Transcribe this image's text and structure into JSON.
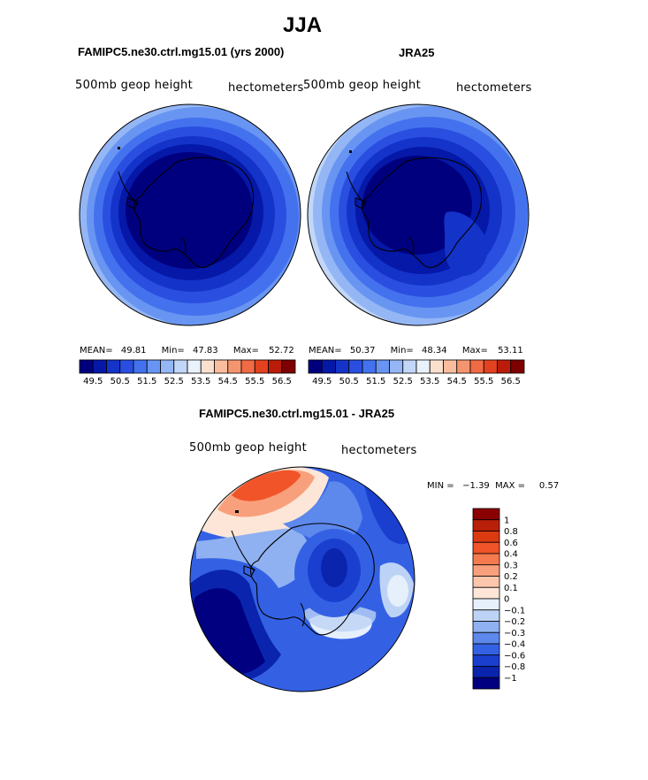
{
  "title": "JJA",
  "panels": [
    {
      "id": "model",
      "subtitle": "FAMIPC5.ne30.ctrl.mg15.01 (yrs 2000)",
      "var_label": "500mb geop height",
      "units_label": "hectometers",
      "mean_label": "MEAN=",
      "mean": "49.81",
      "min_label": "Min=",
      "min": "47.83",
      "max_label": "Max=",
      "max": "52.72"
    },
    {
      "id": "obs",
      "subtitle": "JRA25",
      "var_label": "500mb geop height",
      "units_label": "hectometers",
      "mean_label": "MEAN=",
      "mean": "50.37",
      "min_label": "Min=",
      "min": "48.34",
      "max_label": "Max=",
      "max": "53.11"
    },
    {
      "id": "diff",
      "subtitle": "FAMIPC5.ne30.ctrl.mg15.01 - JRA25",
      "var_label": "500mb geop height",
      "units_label": "hectometers",
      "minmax_text": "MIN =   −1.39  MAX =     0.57"
    }
  ],
  "chart_data": [
    {
      "type": "heatmap",
      "projection": "south polar stereographic",
      "panel": "model",
      "contour_levels": [
        49.5,
        50,
        50.5,
        51,
        51.5,
        52,
        52.5,
        53,
        53.5,
        54,
        54.5,
        55,
        55.5,
        56,
        56.5
      ],
      "colorbar_tick_labels": [
        "49.5",
        "50.5",
        "51.5",
        "52.5",
        "53.5",
        "54.5",
        "55.5",
        "56.5"
      ],
      "colors": [
        "#00007f",
        "#0518a8",
        "#1433c8",
        "#2a4fe0",
        "#4472ee",
        "#6995f2",
        "#94b6f5",
        "#c2d6f7",
        "#e9f1fb",
        "#fbe0cf",
        "#f9bd9d",
        "#f59570",
        "#f06a45",
        "#e34220",
        "#bb1c0a",
        "#7e0000"
      ],
      "mean": 49.81,
      "min": 47.83,
      "max": 52.72
    },
    {
      "type": "heatmap",
      "projection": "south polar stereographic",
      "panel": "obs",
      "contour_levels": [
        49.5,
        50,
        50.5,
        51,
        51.5,
        52,
        52.5,
        53,
        53.5,
        54,
        54.5,
        55,
        55.5,
        56,
        56.5
      ],
      "colorbar_tick_labels": [
        "49.5",
        "50.5",
        "51.5",
        "52.5",
        "53.5",
        "54.5",
        "55.5",
        "56.5"
      ],
      "colors": [
        "#00007f",
        "#0518a8",
        "#1433c8",
        "#2a4fe0",
        "#4472ee",
        "#6995f2",
        "#94b6f5",
        "#c2d6f7",
        "#e9f1fb",
        "#fbe0cf",
        "#f9bd9d",
        "#f59570",
        "#f06a45",
        "#e34220",
        "#bb1c0a",
        "#7e0000"
      ],
      "mean": 50.37,
      "min": 48.34,
      "max": 53.11
    },
    {
      "type": "heatmap",
      "projection": "south polar stereographic",
      "panel": "diff",
      "contour_levels": [
        -1,
        -0.8,
        -0.6,
        -0.4,
        -0.3,
        -0.2,
        -0.1,
        0,
        0.1,
        0.2,
        0.3,
        0.4,
        0.6,
        0.8,
        1
      ],
      "colorbar_tick_labels": [
        "1",
        "0.8",
        "0.6",
        "0.4",
        "0.3",
        "0.2",
        "0.1",
        "0",
        "−0.1",
        "−0.2",
        "−0.3",
        "−0.4",
        "−0.6",
        "−0.8",
        "−1"
      ],
      "colors_top_to_bottom": [
        "#8b0000",
        "#b8200a",
        "#dc3a10",
        "#f05428",
        "#f57a50",
        "#f8a07c",
        "#fbc6ac",
        "#fde6d8",
        "#e6f0fb",
        "#bdd3f6",
        "#8fb1f1",
        "#5d88ec",
        "#3461e4",
        "#1a3fcf",
        "#0a24ad",
        "#000080"
      ],
      "min": -1.39,
      "max": 0.57,
      "colorbar_orientation": "vertical"
    }
  ]
}
